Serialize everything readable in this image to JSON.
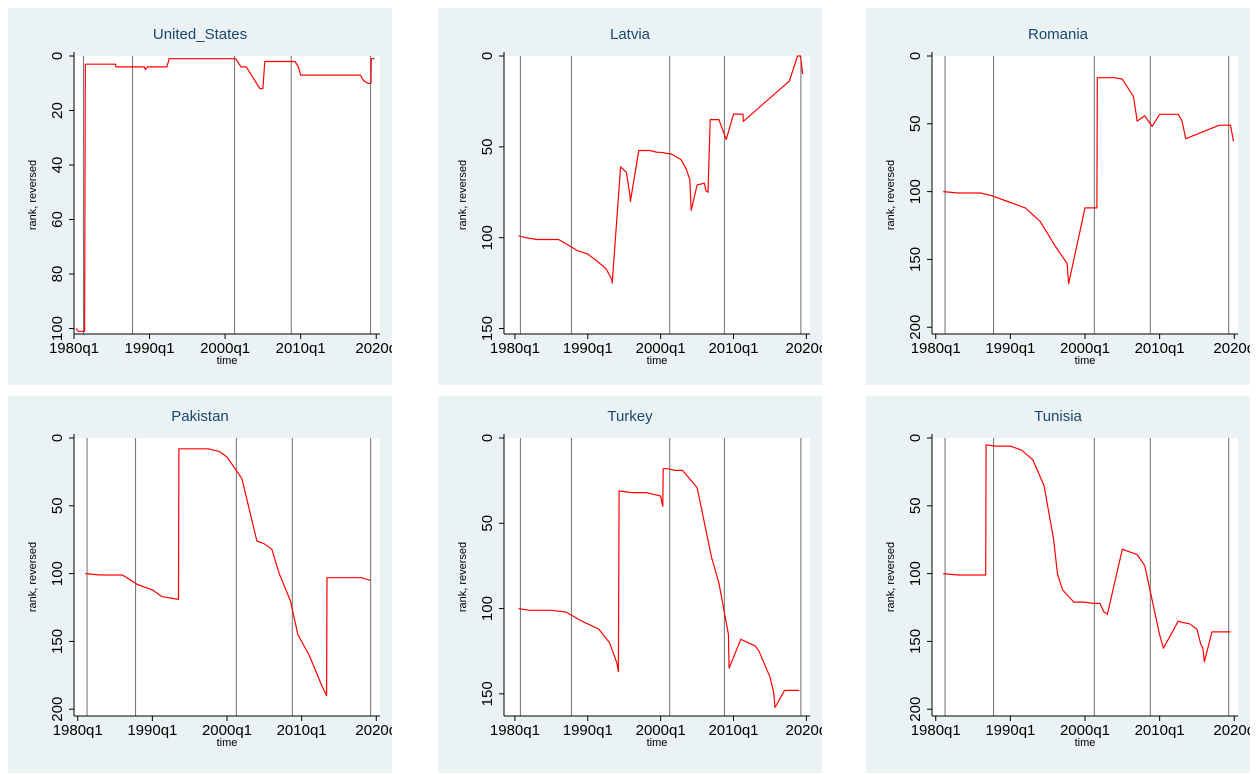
{
  "chart_data": [
    {
      "type": "line",
      "title": "United_States",
      "xlabel": "time",
      "ylabel": "rank, reversed",
      "y_reversed": true,
      "xlim": [
        1980,
        2020.5
      ],
      "ylim": [
        0,
        102
      ],
      "x_ticks": [
        "1980q1",
        "1990q1",
        "2000q1",
        "2010q1",
        "2020q"
      ],
      "y_ticks": [
        0,
        20,
        40,
        60,
        80,
        100
      ],
      "vlines": [
        1981.25,
        1987.75,
        2001.25,
        2008.75,
        2019.25
      ],
      "series": [
        {
          "color": "#ff0000",
          "x": [
            1980.25,
            1980.6,
            1981.15,
            1981.4,
            1981.5,
            1985.5,
            1985.55,
            1987.4,
            1987.5,
            1989.3,
            1989.45,
            1989.7,
            1990.0,
            1992.3,
            1992.6,
            2001.4,
            2002.1,
            2002.8,
            2004.6,
            2005.0,
            2005.25,
            2009.25,
            2009.7,
            2010.0,
            2017.9,
            2018.3,
            2018.9,
            2019.3,
            2019.35,
            2019.8
          ],
          "y": [
            100,
            101,
            101,
            101,
            3,
            3,
            4,
            4,
            4,
            4,
            5,
            4,
            4,
            4,
            1,
            1,
            4,
            4,
            12,
            12,
            2,
            2,
            4,
            7,
            7,
            9,
            10,
            10,
            1,
            1
          ]
        }
      ]
    },
    {
      "type": "line",
      "title": "Latvia",
      "xlabel": "time",
      "ylabel": "rank, reversed",
      "y_reversed": true,
      "xlim": [
        1978.5,
        2020.5
      ],
      "ylim": [
        0,
        153
      ],
      "x_ticks": [
        "1980q1",
        "1990q1",
        "2000q1",
        "2010q1",
        "2020q"
      ],
      "y_ticks": [
        0,
        50,
        100,
        150
      ],
      "vlines": [
        1980.75,
        1987.75,
        2001.25,
        2008.75,
        2019.25
      ],
      "series": [
        {
          "color": "#ff0000",
          "x": [
            1980.5,
            1981.5,
            1983.0,
            1984.5,
            1986.0,
            1987.3,
            1988.5,
            1990.0,
            1991.3,
            1992.5,
            1993.3,
            1993.35,
            1994.5,
            1995.3,
            1995.8,
            1995.85,
            1997.0,
            1998.5,
            1999.5,
            2000.0,
            2001.5,
            2002.8,
            2003.5,
            2004.0,
            2004.2,
            2005.0,
            2006.0,
            2006.2,
            2006.5,
            2006.8,
            2008.0,
            2009.0,
            2010.0,
            2011.0,
            2011.3,
            2011.35,
            2017.6,
            2017.65,
            2018.8,
            2019.2,
            2019.5
          ],
          "y": [
            99,
            100,
            101,
            101,
            101,
            104,
            107,
            109,
            113,
            117,
            123,
            125,
            61,
            64,
            77,
            80,
            52,
            52,
            53,
            53,
            54,
            57,
            62,
            68,
            85,
            71,
            70,
            74,
            75,
            35,
            35,
            46,
            32,
            32,
            32,
            36,
            14,
            14,
            0,
            0,
            10
          ]
        }
      ]
    },
    {
      "type": "line",
      "title": "Romania",
      "xlabel": "time",
      "ylabel": "rank, reversed",
      "y_reversed": true,
      "xlim": [
        1979.5,
        2020.5
      ],
      "ylim": [
        0,
        205
      ],
      "x_ticks": [
        "1980q1",
        "1990q1",
        "2000q1",
        "2010q1",
        "2020q"
      ],
      "y_ticks": [
        0,
        50,
        100,
        150,
        200
      ],
      "vlines": [
        1981.25,
        1987.75,
        2001.25,
        2008.75,
        2019.25
      ],
      "series": [
        {
          "color": "#ff0000",
          "x": [
            1981.0,
            1983.0,
            1986.0,
            1987.5,
            1990.0,
            1992.0,
            1994.0,
            1996.0,
            1997.6,
            1997.8,
            2000.0,
            2001.0,
            2001.6,
            2001.65,
            2004.0,
            2005.0,
            2006.5,
            2007.0,
            2008.0,
            2009.0,
            2010.0,
            2010.8,
            2011.2,
            2012.5,
            2013.0,
            2013.5,
            2018.0,
            2019.0,
            2019.5,
            2019.9
          ],
          "y": [
            100,
            101,
            101,
            103,
            108,
            112,
            122,
            140,
            153,
            168,
            112,
            112,
            112,
            16,
            16,
            17,
            30,
            48,
            44,
            52,
            43,
            43,
            43,
            43,
            48,
            61,
            51,
            51,
            51,
            63
          ]
        }
      ]
    },
    {
      "type": "line",
      "title": "Pakistan",
      "xlabel": "time",
      "ylabel": "rank, reversed",
      "y_reversed": true,
      "xlim": [
        1979.5,
        2020.5
      ],
      "ylim": [
        0,
        205
      ],
      "x_ticks": [
        "1980q1",
        "1990q1",
        "2000q1",
        "2010q1",
        "2020q"
      ],
      "y_ticks": [
        0,
        50,
        100,
        150,
        200
      ],
      "vlines": [
        1981.25,
        1987.75,
        2001.25,
        2008.75,
        2019.25
      ],
      "series": [
        {
          "color": "#ff0000",
          "x": [
            1981.0,
            1983.0,
            1986.0,
            1988.0,
            1990.0,
            1991.3,
            1993.5,
            1993.55,
            1997.0,
            1997.5,
            1999.0,
            2000.0,
            2002.0,
            2004.0,
            2005.0,
            2006.0,
            2007.0,
            2008.5,
            2009.5,
            2011.0,
            2012.5,
            2013.0,
            2013.35,
            2013.4,
            2017.0,
            2018.0,
            2019.25
          ],
          "y": [
            100,
            101,
            101,
            108,
            112,
            117,
            119,
            8,
            8,
            8,
            10,
            14,
            30,
            76,
            78,
            82,
            100,
            120,
            145,
            160,
            180,
            186,
            190,
            103,
            103,
            103,
            105
          ]
        }
      ]
    },
    {
      "type": "line",
      "title": "Turkey",
      "xlabel": "time",
      "ylabel": "rank, reversed",
      "y_reversed": true,
      "xlim": [
        1978.5,
        2020.5
      ],
      "ylim": [
        0,
        163
      ],
      "x_ticks": [
        "1980q1",
        "1990q1",
        "2000q1",
        "2010q1",
        "2020q"
      ],
      "y_ticks": [
        0,
        50,
        100,
        150
      ],
      "vlines": [
        1980.75,
        1987.75,
        2001.25,
        2008.75,
        2019.25
      ],
      "series": [
        {
          "color": "#ff0000",
          "x": [
            1980.5,
            1982.0,
            1985.0,
            1987.0,
            1989.0,
            1990.0,
            1991.5,
            1993.0,
            1994.0,
            1994.2,
            1994.3,
            1996.0,
            1998.0,
            2000.0,
            2000.3,
            2000.35,
            2001.0,
            2002.0,
            2003.0,
            2005.0,
            2006.5,
            2007.0,
            2008.0,
            2009.3,
            2009.4,
            2011.0,
            2012.0,
            2013.0,
            2013.5,
            2015.0,
            2015.5,
            2015.7,
            2017.0,
            2019.0
          ],
          "y": [
            100,
            101,
            101,
            102,
            107,
            109,
            112,
            120,
            132,
            137,
            31,
            32,
            32,
            34,
            40,
            18,
            18,
            19,
            19,
            29,
            60,
            70,
            85,
            115,
            135,
            118,
            120,
            122,
            125,
            140,
            149,
            158,
            148,
            148
          ]
        }
      ]
    },
    {
      "type": "line",
      "title": "Tunisia",
      "xlabel": "time",
      "ylabel": "rank, reversed",
      "y_reversed": true,
      "xlim": [
        1979.5,
        2020.5
      ],
      "ylim": [
        0,
        205
      ],
      "x_ticks": [
        "1980q1",
        "1990q1",
        "2000q1",
        "2010q1",
        "2020q"
      ],
      "y_ticks": [
        0,
        50,
        100,
        150,
        200
      ],
      "vlines": [
        1981.25,
        1987.75,
        2001.25,
        2008.75,
        2019.25
      ],
      "series": [
        {
          "color": "#ff0000",
          "x": [
            1981.0,
            1983.0,
            1986.0,
            1986.7,
            1986.75,
            1988.0,
            1990.0,
            1991.5,
            1993.0,
            1994.5,
            1995.8,
            1996.3,
            1997.0,
            1998.5,
            2000.0,
            2001.0,
            2002.0,
            2002.5,
            2003.0,
            2005.0,
            2006.0,
            2007.0,
            2008.0,
            2010.0,
            2010.5,
            2012.5,
            2013.0,
            2014.0,
            2015.0,
            2015.5,
            2015.8,
            2016.0,
            2017.0,
            2019.0,
            2019.5
          ],
          "y": [
            100,
            101,
            101,
            101,
            5,
            6,
            6,
            9,
            16,
            35,
            75,
            100,
            112,
            121,
            121,
            122,
            122,
            128,
            130,
            82,
            84,
            86,
            94,
            145,
            155,
            135,
            136,
            137,
            141,
            152,
            155,
            165,
            143,
            143,
            143
          ]
        }
      ]
    }
  ]
}
